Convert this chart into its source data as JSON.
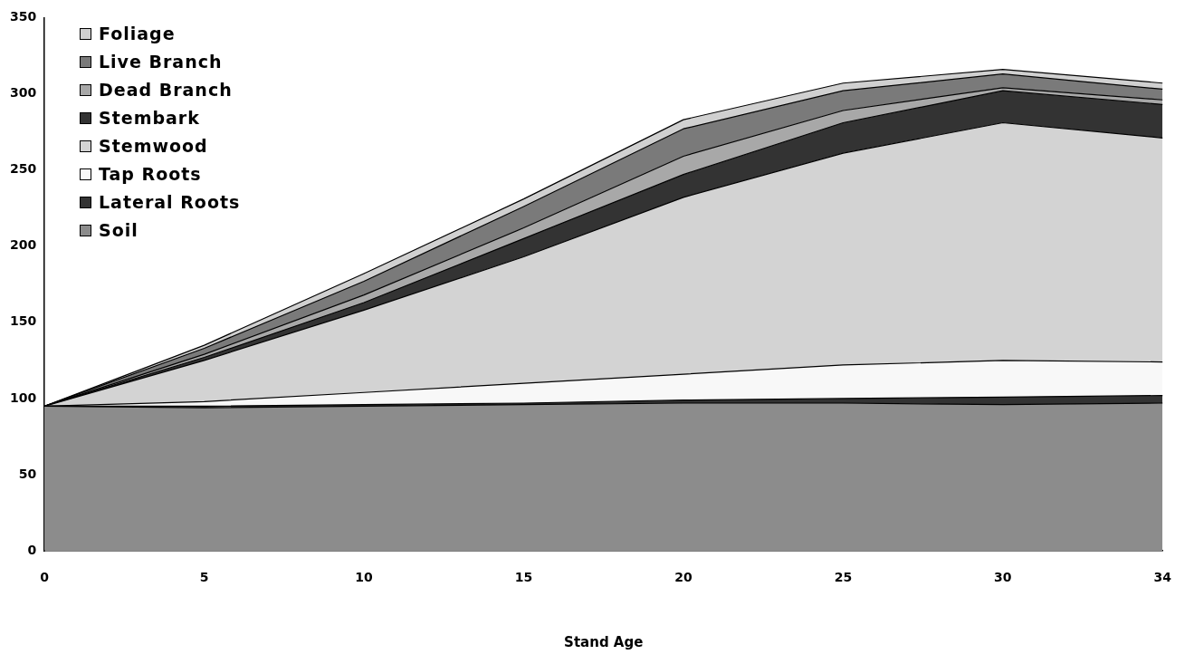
{
  "chart_data": {
    "type": "area",
    "stacked": true,
    "xlabel": "Stand Age",
    "categories": [
      "0",
      "5",
      "10",
      "15",
      "20",
      "25",
      "30",
      "34"
    ],
    "series": [
      {
        "name": "Soil",
        "color": "#8c8c8c",
        "values": [
          95,
          94,
          95,
          96,
          97,
          97,
          96,
          97
        ]
      },
      {
        "name": "Lateral Roots",
        "color": "#333333",
        "values": [
          0,
          1,
          1,
          1,
          2,
          3,
          5,
          5
        ]
      },
      {
        "name": "Tap Roots",
        "color": "#f8f8f8",
        "values": [
          0,
          3,
          8,
          13,
          17,
          22,
          24,
          22
        ]
      },
      {
        "name": "Stemwood",
        "color": "#d3d3d3",
        "values": [
          0,
          27,
          54,
          83,
          116,
          139,
          156,
          147
        ]
      },
      {
        "name": "Stembark",
        "color": "#333333",
        "values": [
          0,
          2,
          5,
          12,
          15,
          20,
          21,
          22
        ]
      },
      {
        "name": "Dead Branch",
        "color": "#a8a8a8",
        "values": [
          0,
          2,
          5,
          7,
          12,
          8,
          2,
          3
        ]
      },
      {
        "name": "Live Branch",
        "color": "#7a7a7a",
        "values": [
          0,
          4,
          9,
          14,
          18,
          13,
          9,
          7
        ]
      },
      {
        "name": "Foliage",
        "color": "#d0d0d0",
        "values": [
          0,
          2,
          5,
          5,
          6,
          5,
          3,
          4
        ]
      }
    ],
    "ylim": [
      0,
      350
    ],
    "yticks": [
      0,
      50,
      100,
      150,
      200,
      250,
      300,
      350
    ],
    "grid": false,
    "legend": "top left"
  }
}
